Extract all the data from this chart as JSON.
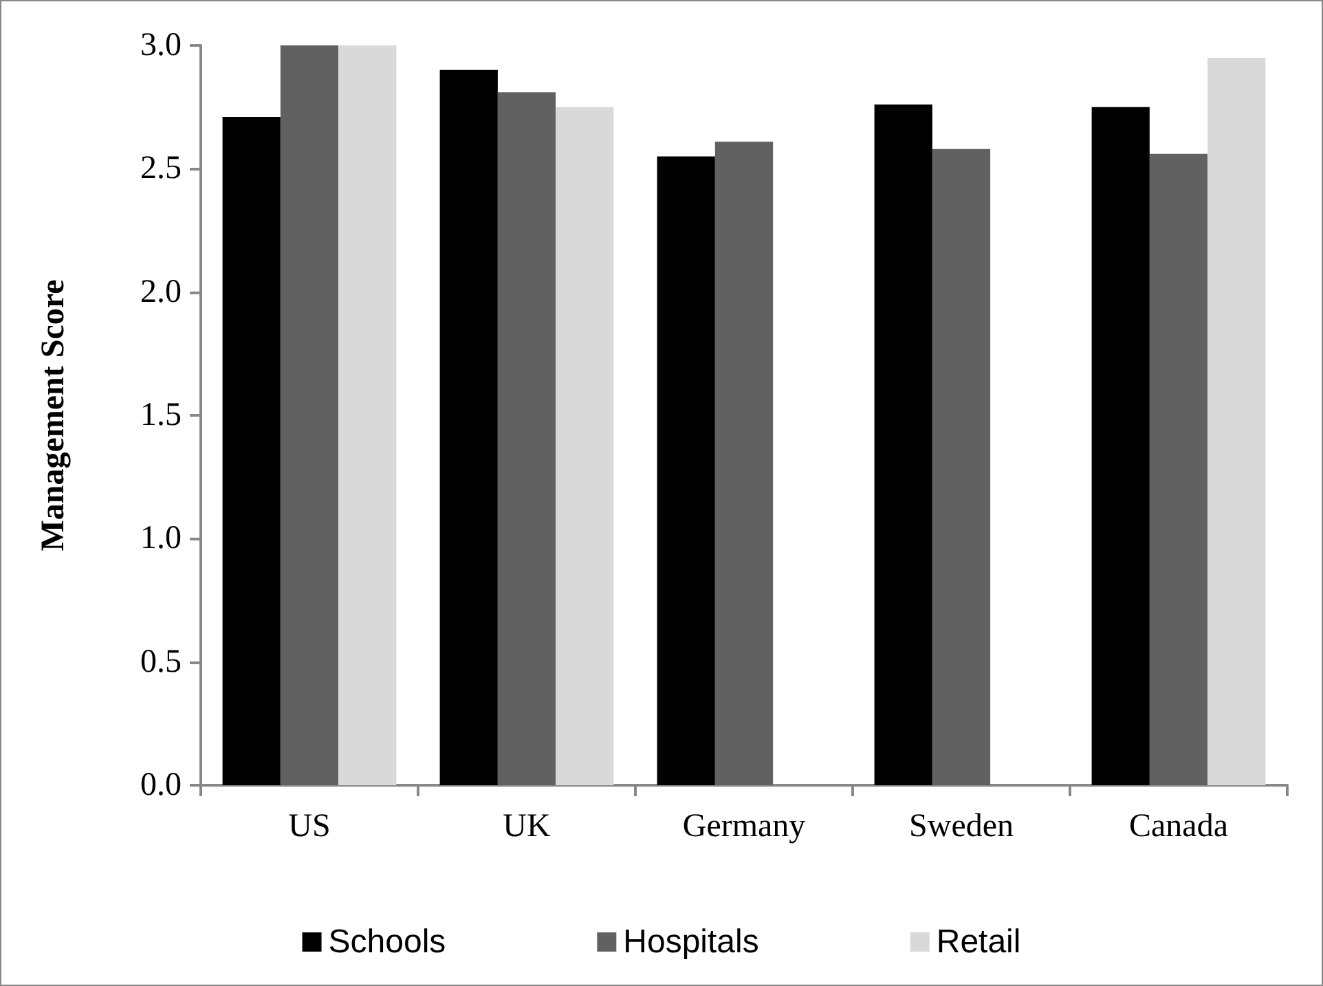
{
  "chart_data": {
    "type": "bar",
    "ylabel": "Management Score",
    "categories": [
      "US",
      "UK",
      "Germany",
      "Sweden",
      "Canada"
    ],
    "series": [
      {
        "name": "Schools",
        "color": "#000000",
        "values": [
          2.71,
          2.9,
          2.55,
          2.76,
          2.75
        ]
      },
      {
        "name": "Hospitals",
        "color": "#616161",
        "values": [
          3.0,
          2.81,
          2.61,
          2.58,
          2.56
        ]
      },
      {
        "name": "Retail",
        "color": "#d9d9d9",
        "values": [
          3.0,
          2.75,
          null,
          null,
          2.95
        ]
      }
    ],
    "ylim": [
      0,
      3
    ],
    "yticks": [
      {
        "value": 0,
        "label": "0.0"
      },
      0.5,
      {
        "value": 1,
        "label": "1.0"
      },
      1.5,
      {
        "value": 2,
        "label": "2.0"
      },
      2.5,
      {
        "value": 3,
        "label": "3.0"
      }
    ],
    "grid": false,
    "legend": "bottom"
  }
}
